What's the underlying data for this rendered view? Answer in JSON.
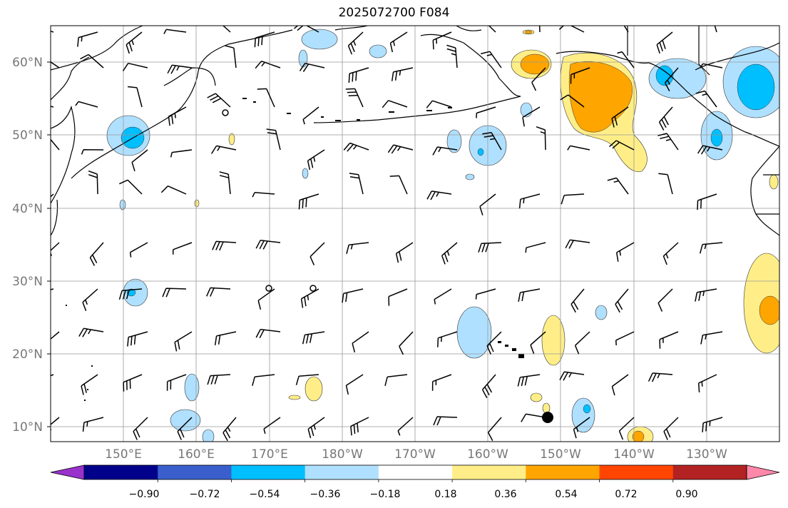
{
  "title": "2025072700 F084",
  "map": {
    "lon_labels": [
      "150°E",
      "160°E",
      "170°E",
      "180°W",
      "170°W",
      "160°W",
      "150°W",
      "140°W",
      "130°W"
    ],
    "lat_labels": [
      "60°N",
      "50°N",
      "40°N",
      "30°N",
      "20°N",
      "10°N"
    ],
    "extent": {
      "lon_min": 140,
      "lon_max": 240,
      "lat_min": 8,
      "lat_max": 65
    },
    "grid": true
  },
  "colorbar": {
    "tick_labels": [
      "−0.90",
      "−0.72",
      "−0.54",
      "−0.36",
      "−0.18",
      "0.18",
      "0.36",
      "0.54",
      "0.72",
      "0.90"
    ],
    "colors": [
      "#9932cc",
      "#00008b",
      "#3a5fcd",
      "#00bfff",
      "#b0e0ff",
      "#ffffff",
      "#ffee88",
      "#ffa500",
      "#ff4500",
      "#b22222",
      "#ff88aa"
    ]
  }
}
